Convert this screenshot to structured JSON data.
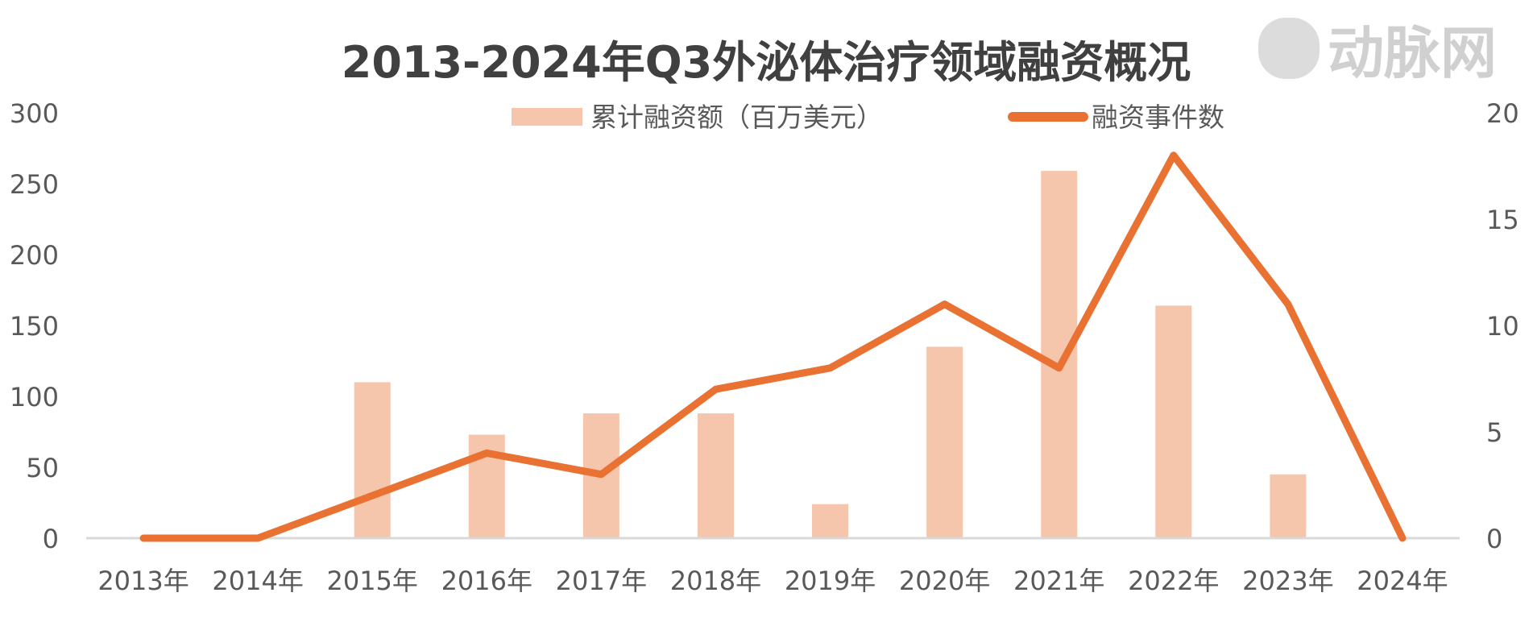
{
  "chart_data": {
    "type": "bar+line",
    "title": "2013-2024年Q3外泌体治疗领域融资概况",
    "categories": [
      "2013年",
      "2014年",
      "2015年",
      "2016年",
      "2017年",
      "2018年",
      "2019年",
      "2020年",
      "2021年",
      "2022年",
      "2023年",
      "2024年"
    ],
    "series": [
      {
        "name": "累计融资额（百万美元）",
        "type": "bar",
        "axis": "left",
        "color": "#F5C6AB",
        "values": [
          0,
          0,
          110,
          73,
          88,
          88,
          24,
          135,
          259,
          164,
          45,
          0
        ]
      },
      {
        "name": "融资事件数",
        "type": "line",
        "axis": "right",
        "color": "#E97132",
        "values": [
          0,
          0,
          2,
          4,
          3,
          7,
          8,
          11,
          8,
          18,
          11,
          0
        ]
      }
    ],
    "y_left": {
      "range": [
        0,
        300
      ],
      "ticks": [
        "0",
        "50",
        "100",
        "150",
        "200",
        "250",
        "300"
      ]
    },
    "y_right": {
      "range": [
        0,
        20
      ],
      "ticks": [
        "0",
        "5",
        "10",
        "15",
        "20"
      ]
    },
    "legend_position": "top-center",
    "grid": false
  },
  "watermark": "动脉网"
}
